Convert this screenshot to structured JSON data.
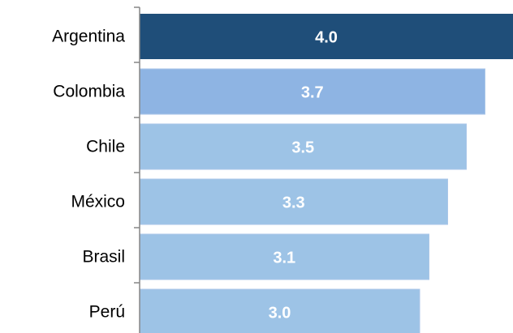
{
  "chart_data": {
    "type": "bar",
    "orientation": "horizontal",
    "categories": [
      "Argentina",
      "Colombia",
      "Chile",
      "México",
      "Brasil",
      "Perú"
    ],
    "values": [
      4.0,
      3.7,
      3.5,
      3.3,
      3.1,
      3.0
    ],
    "value_labels": [
      "4.0",
      "3.7",
      "3.5",
      "3.3",
      "3.1",
      "3.0"
    ],
    "colors": [
      "#1f4e79",
      "#8eb4e3",
      "#9dc3e6",
      "#9dc3e6",
      "#9dc3e6",
      "#9dc3e6"
    ],
    "xlim": [
      0,
      4.0
    ]
  }
}
